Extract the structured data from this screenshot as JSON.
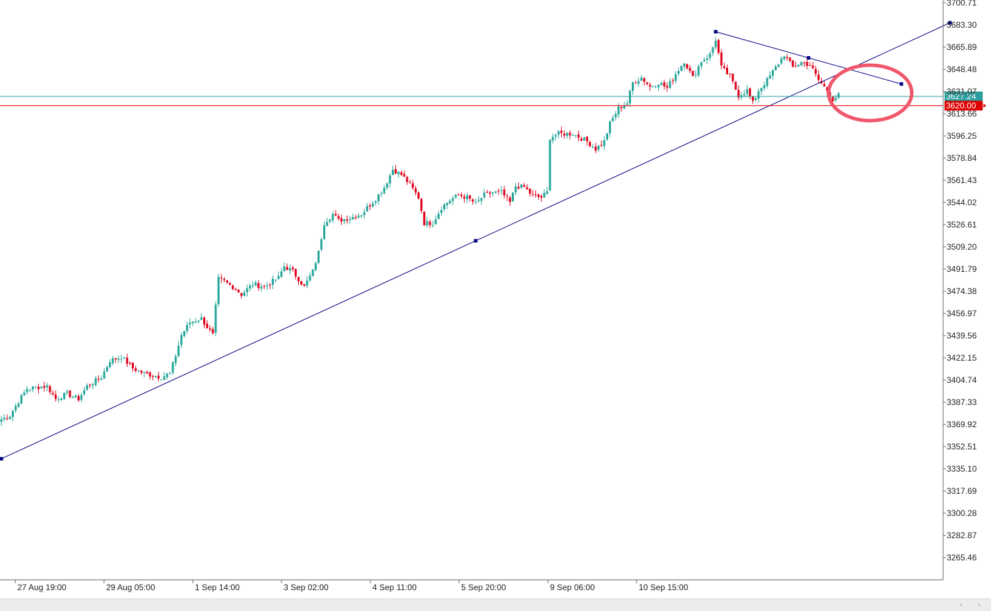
{
  "chart_data": {
    "type": "candlestick",
    "y_axis_ticks": [
      "3700.71",
      "3683.30",
      "3665.89",
      "3648.48",
      "3631.07",
      "3613.66",
      "3596.25",
      "3578.84",
      "3561.43",
      "3544.02",
      "3526.61",
      "3509.20",
      "3491.79",
      "3474.38",
      "3456.97",
      "3439.56",
      "3422.15",
      "3404.74",
      "3387.33",
      "3369.92",
      "3352.51",
      "3335.10",
      "3317.69",
      "3300.28",
      "3282.87",
      "3265.46"
    ],
    "ylim": [
      3260,
      3702
    ],
    "x_axis_ticks": [
      "27 Aug 19:00",
      "29 Aug 05:00",
      "1 Sep 14:00",
      "3 Sep 02:00",
      "4 Sep 11:00",
      "5 Sep 20:00",
      "9 Sep 06:00",
      "10 Sep 15:00"
    ],
    "candle_count": 166,
    "up_color": "#26a69a",
    "down_color": "#e0001b",
    "close_anchors": [
      [
        0,
        3374
      ],
      [
        3,
        3377
      ],
      [
        6,
        3388
      ],
      [
        9,
        3398
      ],
      [
        12,
        3399
      ],
      [
        16,
        3400
      ],
      [
        19,
        3390
      ],
      [
        23,
        3394
      ],
      [
        27,
        3390
      ],
      [
        30,
        3400
      ],
      [
        35,
        3407
      ],
      [
        38,
        3420
      ],
      [
        42,
        3423
      ],
      [
        46,
        3414
      ],
      [
        50,
        3410
      ],
      [
        56,
        3407
      ],
      [
        59,
        3410
      ],
      [
        61,
        3424
      ],
      [
        63,
        3440
      ],
      [
        66,
        3450
      ],
      [
        70,
        3453
      ],
      [
        74,
        3440
      ],
      [
        76,
        3484
      ],
      [
        78,
        3482
      ],
      [
        81,
        3478
      ],
      [
        84,
        3472
      ],
      [
        88,
        3480
      ],
      [
        92,
        3478
      ],
      [
        97,
        3485
      ],
      [
        99,
        3494
      ],
      [
        102,
        3490
      ],
      [
        106,
        3478
      ],
      [
        109,
        3490
      ],
      [
        111,
        3505
      ],
      [
        113,
        3528
      ],
      [
        116,
        3535
      ],
      [
        118,
        3530
      ],
      [
        122,
        3532
      ],
      [
        126,
        3535
      ],
      [
        128,
        3540
      ],
      [
        131,
        3547
      ],
      [
        134,
        3556
      ],
      [
        137,
        3570
      ],
      [
        140,
        3566
      ],
      [
        143,
        3558
      ],
      [
        146,
        3548
      ],
      [
        148,
        3528
      ],
      [
        151,
        3528
      ],
      [
        154,
        3540
      ],
      [
        157,
        3546
      ],
      [
        160,
        3550
      ],
      [
        163,
        3548
      ],
      [
        166,
        3543
      ],
      [
        169,
        3550
      ],
      [
        172,
        3552
      ],
      [
        175,
        3552
      ],
      [
        178,
        3544
      ],
      [
        180,
        3557
      ],
      [
        183,
        3556
      ],
      [
        186,
        3549
      ],
      [
        189,
        3548
      ],
      [
        191,
        3552
      ],
      [
        192,
        3595
      ],
      [
        195,
        3598
      ],
      [
        200,
        3598
      ],
      [
        205,
        3592
      ],
      [
        208,
        3586
      ],
      [
        211,
        3592
      ],
      [
        213,
        3606
      ],
      [
        216,
        3618
      ],
      [
        219,
        3622
      ],
      [
        221,
        3638
      ],
      [
        224,
        3642
      ],
      [
        227,
        3635
      ],
      [
        230,
        3638
      ],
      [
        233,
        3634
      ],
      [
        236,
        3645
      ],
      [
        239,
        3655
      ],
      [
        242,
        3642
      ],
      [
        245,
        3655
      ],
      [
        248,
        3660
      ],
      [
        250,
        3672
      ],
      [
        252,
        3650
      ],
      [
        255,
        3643
      ],
      [
        258,
        3628
      ],
      [
        261,
        3632
      ],
      [
        263,
        3622
      ],
      [
        265,
        3632
      ],
      [
        268,
        3640
      ],
      [
        271,
        3650
      ],
      [
        274,
        3660
      ],
      [
        277,
        3650
      ],
      [
        280,
        3654
      ],
      [
        283,
        3652
      ],
      [
        286,
        3640
      ],
      [
        289,
        3632
      ],
      [
        291,
        3625
      ],
      [
        293,
        3628
      ]
    ],
    "trendlines": [
      {
        "from": [
          0,
          3343
        ],
        "to": [
          332,
          3685
        ]
      },
      {
        "from": [
          250,
          3678
        ],
        "to": [
          315,
          3637
        ]
      }
    ],
    "horizontal_lines": [
      {
        "value": 3627.24,
        "color": "#2a9d9d",
        "label": "3627.24"
      },
      {
        "value": 3620.0,
        "color": "#dd0000",
        "label": "3620.00"
      }
    ],
    "annotation": {
      "type": "ellipse",
      "color": "#f0576b",
      "center": [
        298,
        3630
      ]
    },
    "grid": false
  },
  "scrollbar": {
    "left_icon": "scroll-left-icon",
    "right_icon": "scroll-right-icon",
    "left_glyph": "‹",
    "right_glyph": "›"
  }
}
